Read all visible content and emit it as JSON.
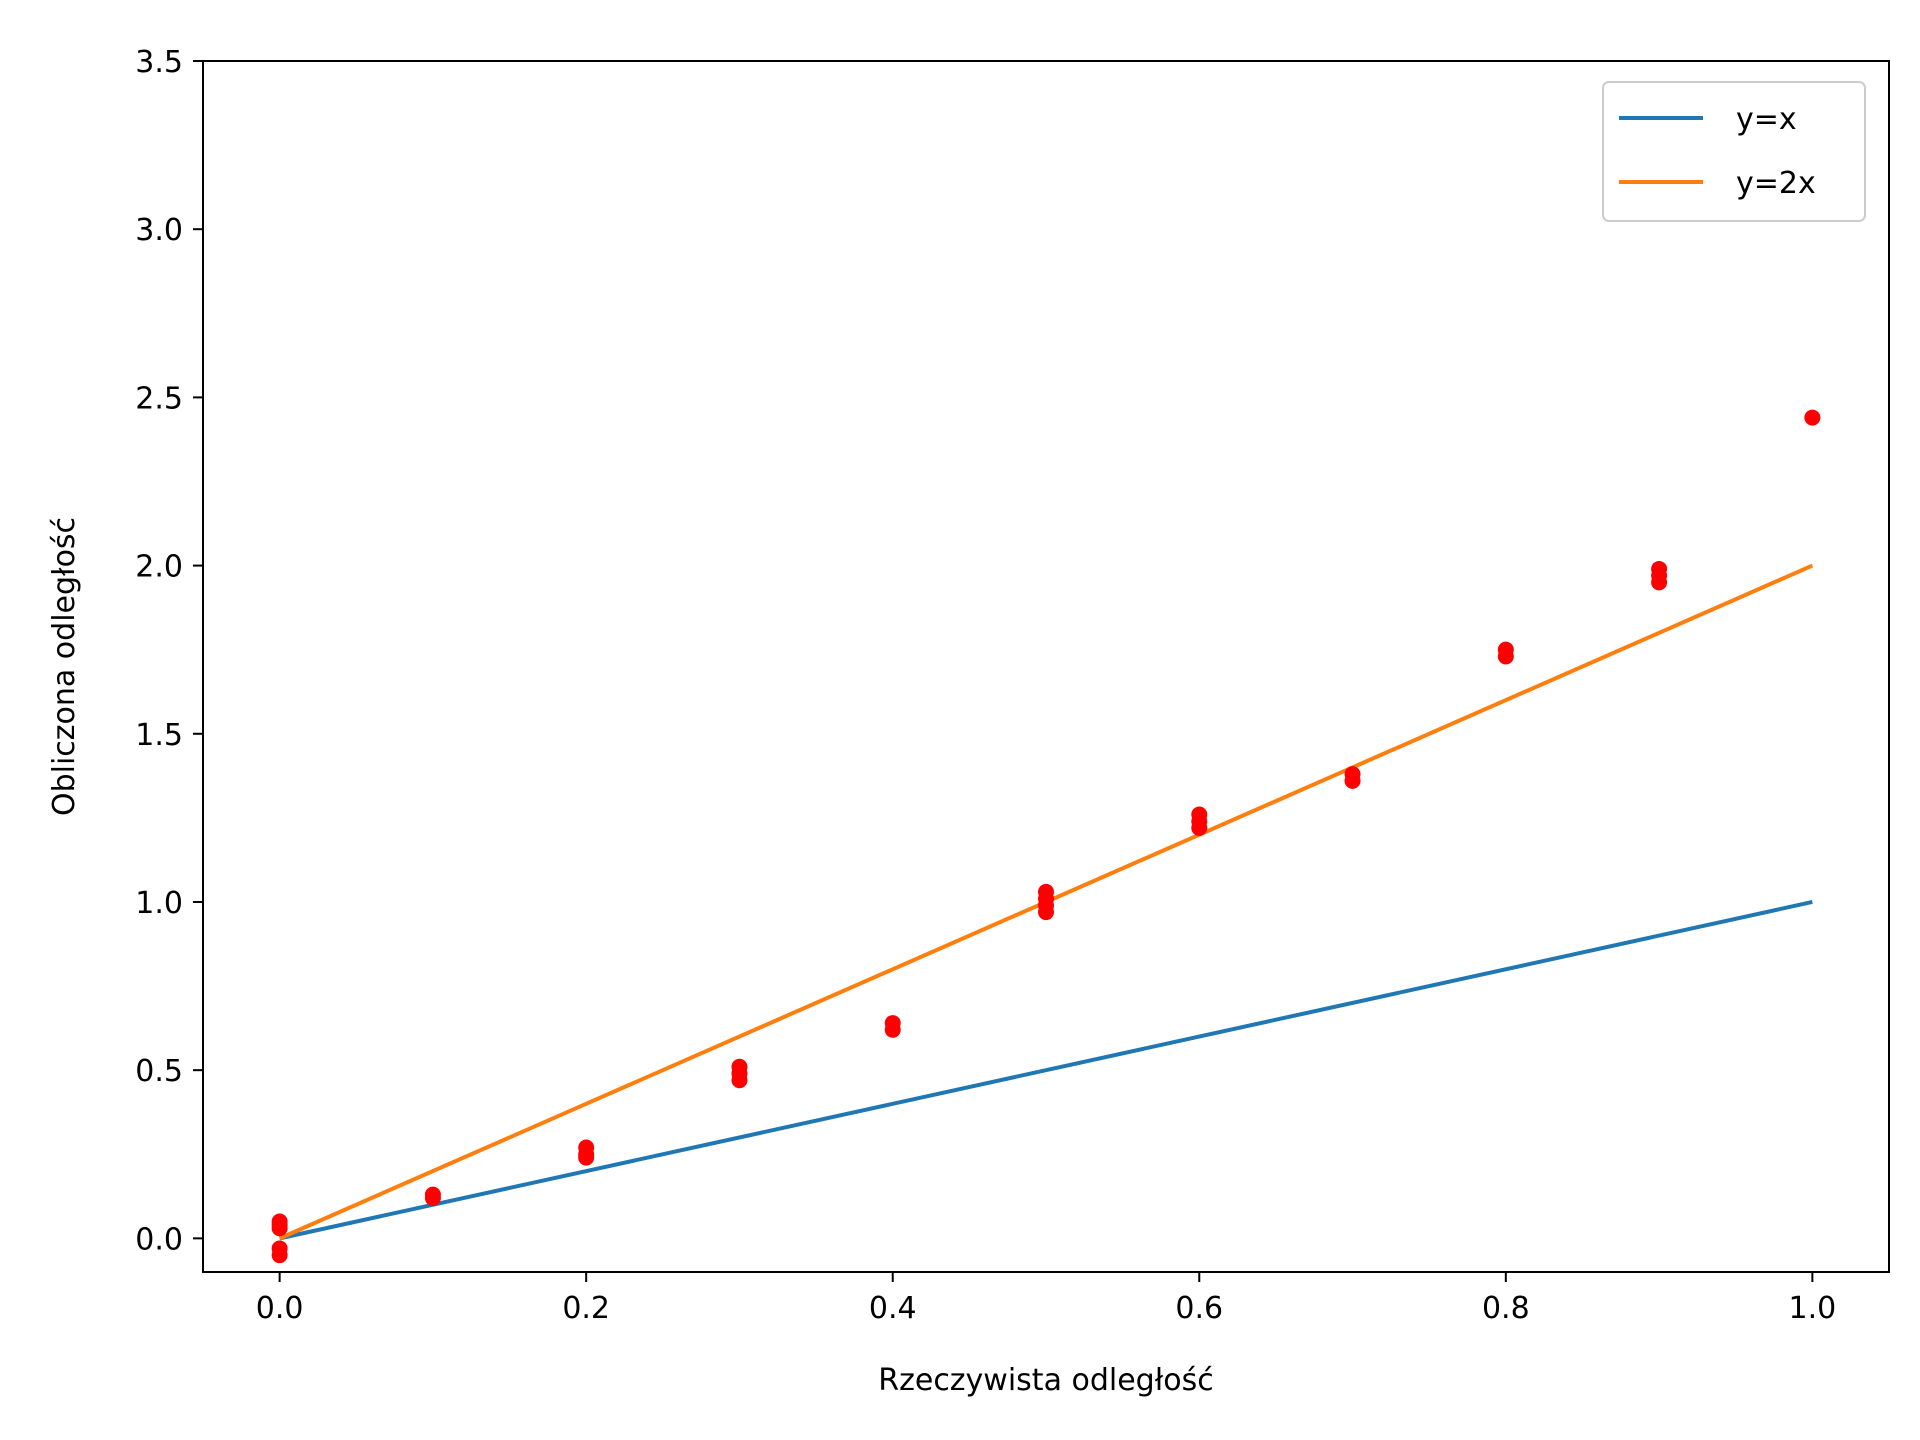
{
  "chart_data": {
    "type": "scatter",
    "title": "",
    "xlabel": "Rzeczywista odległość",
    "ylabel": "Obliczona odległość",
    "xlim": [
      -0.05,
      1.05
    ],
    "ylim": [
      -0.1,
      3.5
    ],
    "x_ticks": [
      0.0,
      0.2,
      0.4,
      0.6,
      0.8,
      1.0
    ],
    "x_tick_labels": [
      "0.0",
      "0.2",
      "0.4",
      "0.6",
      "0.8",
      "1.0"
    ],
    "y_ticks": [
      0.0,
      0.5,
      1.0,
      1.5,
      2.0,
      2.5,
      3.0,
      3.5
    ],
    "y_tick_labels": [
      "0.0",
      "0.5",
      "1.0",
      "1.5",
      "2.0",
      "2.5",
      "3.0",
      "3.5"
    ],
    "grid": false,
    "legend_position": "top-right",
    "lines": [
      {
        "name": "y=x",
        "color": "#1f77b4",
        "x": [
          0.0,
          1.0
        ],
        "y": [
          0.0,
          1.0
        ]
      },
      {
        "name": "y=2x",
        "color": "#ff7f0e",
        "x": [
          0.0,
          1.0
        ],
        "y": [
          0.0,
          2.0
        ]
      }
    ],
    "scatter": {
      "color": "#ff0000",
      "points": [
        [
          0.0,
          0.05
        ],
        [
          0.0,
          0.04
        ],
        [
          0.0,
          0.03
        ],
        [
          0.0,
          -0.03
        ],
        [
          0.0,
          -0.05
        ],
        [
          0.1,
          0.13
        ],
        [
          0.1,
          0.12
        ],
        [
          0.2,
          0.27
        ],
        [
          0.2,
          0.25
        ],
        [
          0.2,
          0.24
        ],
        [
          0.3,
          0.51
        ],
        [
          0.3,
          0.49
        ],
        [
          0.3,
          0.47
        ],
        [
          0.4,
          0.64
        ],
        [
          0.4,
          0.62
        ],
        [
          0.5,
          1.03
        ],
        [
          0.5,
          1.01
        ],
        [
          0.5,
          0.99
        ],
        [
          0.5,
          0.97
        ],
        [
          0.6,
          1.26
        ],
        [
          0.6,
          1.24
        ],
        [
          0.6,
          1.22
        ],
        [
          0.7,
          1.38
        ],
        [
          0.7,
          1.36
        ],
        [
          0.8,
          1.75
        ],
        [
          0.8,
          1.73
        ],
        [
          0.9,
          1.99
        ],
        [
          0.9,
          1.97
        ],
        [
          0.9,
          1.95
        ],
        [
          1.0,
          2.44
        ]
      ]
    }
  }
}
